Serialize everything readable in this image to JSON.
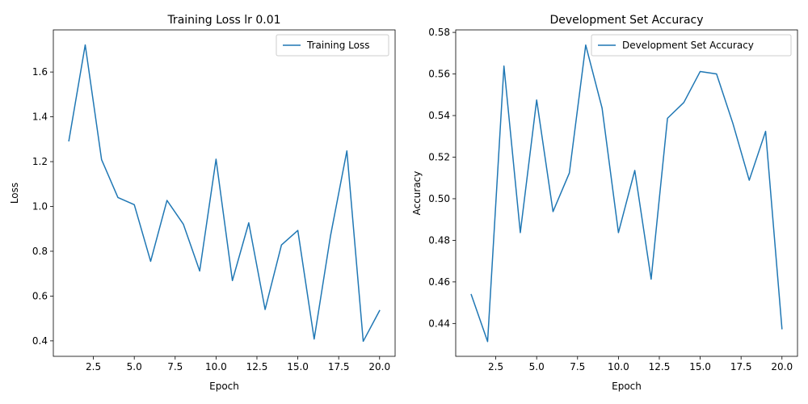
{
  "chart_data": [
    {
      "type": "line",
      "title": "Training Loss lr 0.01",
      "xlabel": "Epoch",
      "ylabel": "Loss",
      "xlim": [
        0.05,
        20.95
      ],
      "ylim": [
        0.331,
        1.788
      ],
      "xticks": [
        2.5,
        5.0,
        7.5,
        10.0,
        12.5,
        15.0,
        17.5,
        20.0
      ],
      "xtick_labels": [
        "2.5",
        "5.0",
        "7.5",
        "10.0",
        "12.5",
        "15.0",
        "17.5",
        "20.0"
      ],
      "yticks": [
        0.4,
        0.6,
        0.8,
        1.0,
        1.2,
        1.4,
        1.6
      ],
      "ytick_labels": [
        "0.4",
        "0.6",
        "0.8",
        "1.0",
        "1.2",
        "1.4",
        "1.6"
      ],
      "grid": false,
      "legend_position": "top-right",
      "x": [
        1,
        2,
        3,
        4,
        5,
        6,
        7,
        8,
        9,
        10,
        11,
        12,
        13,
        14,
        15,
        16,
        17,
        18,
        19,
        20
      ],
      "series": [
        {
          "name": "Training Loss",
          "color": "#1f77b4",
          "values": [
            1.293,
            1.721,
            1.209,
            1.04,
            1.008,
            0.755,
            1.027,
            0.921,
            0.712,
            1.211,
            0.669,
            0.927,
            0.54,
            0.828,
            0.893,
            0.408,
            0.869,
            1.248,
            0.398,
            0.535
          ]
        }
      ]
    },
    {
      "type": "line",
      "title": "Development Set Accuracy",
      "xlabel": "Epoch",
      "ylabel": "Accuracy",
      "xlim": [
        0.05,
        20.95
      ],
      "ylim": [
        0.4242,
        0.5812
      ],
      "xticks": [
        2.5,
        5.0,
        7.5,
        10.0,
        12.5,
        15.0,
        17.5,
        20.0
      ],
      "xtick_labels": [
        "2.5",
        "5.0",
        "7.5",
        "10.0",
        "12.5",
        "15.0",
        "17.5",
        "20.0"
      ],
      "yticks": [
        0.44,
        0.46,
        0.48,
        0.5,
        0.52,
        0.54,
        0.56,
        0.58
      ],
      "ytick_labels": [
        "0.44",
        "0.46",
        "0.48",
        "0.50",
        "0.52",
        "0.54",
        "0.56",
        "0.58"
      ],
      "grid": false,
      "legend_position": "top-right",
      "x": [
        1,
        2,
        3,
        4,
        5,
        6,
        7,
        8,
        9,
        10,
        11,
        12,
        13,
        14,
        15,
        16,
        17,
        18,
        19,
        20
      ],
      "series": [
        {
          "name": "Development Set Accuracy",
          "color": "#1f77b4",
          "values": [
            0.4539,
            0.4313,
            0.5638,
            0.4837,
            0.5475,
            0.4938,
            0.5124,
            0.5739,
            0.5436,
            0.4837,
            0.5136,
            0.4613,
            0.5387,
            0.5463,
            0.5612,
            0.56,
            0.5362,
            0.5089,
            0.5324,
            0.4375
          ]
        }
      ]
    }
  ]
}
